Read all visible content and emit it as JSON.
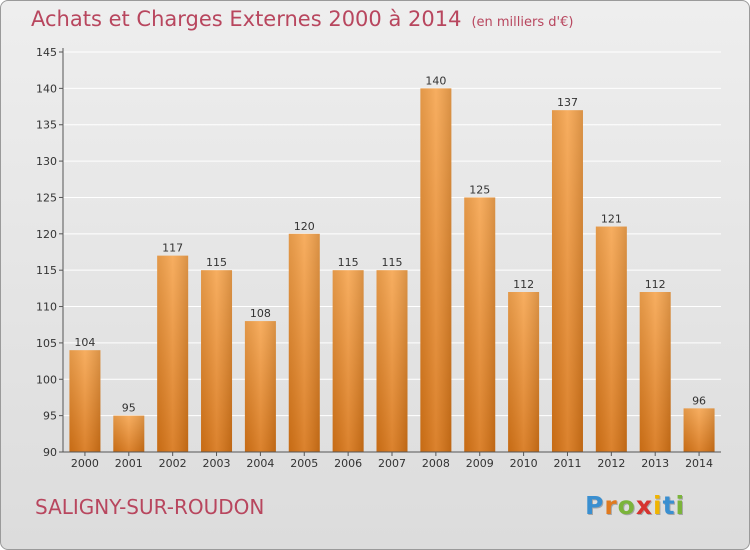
{
  "header": {
    "title": "Achats et Charges Externes 2000 à 2014",
    "unit": "(en milliers d'€)"
  },
  "footer": {
    "commune": "SALIGNY-SUR-ROUDON",
    "logo_letters": [
      "P",
      "r",
      "o",
      "x",
      "i",
      "t",
      "i"
    ],
    "logo_colors": [
      "#3a8fd0",
      "#e07a1f",
      "#7bb43a",
      "#d6332f",
      "#f0b400",
      "#3a8fd0",
      "#7bb43a"
    ]
  },
  "colors": {
    "title": "#b8465e",
    "bar_top": "#f6a54f",
    "bar_bottom": "#d77416",
    "grid": "#ffffff",
    "axis": "#555555"
  },
  "chart_data": {
    "type": "bar",
    "categories": [
      "2000",
      "2001",
      "2002",
      "2003",
      "2004",
      "2005",
      "2006",
      "2007",
      "2008",
      "2009",
      "2010",
      "2011",
      "2012",
      "2013",
      "2014"
    ],
    "values": [
      104,
      95,
      117,
      115,
      108,
      120,
      115,
      115,
      140,
      125,
      112,
      137,
      121,
      112,
      96
    ],
    "data_labels": [
      "104",
      "95",
      "117",
      "115",
      "108",
      "120",
      "115",
      "115",
      "140",
      "125",
      "112",
      "137",
      "121",
      "112",
      "96"
    ],
    "y_ticks": [
      90,
      95,
      100,
      105,
      110,
      115,
      120,
      125,
      130,
      135,
      140,
      145
    ],
    "ylim": [
      90,
      145
    ],
    "grid": true,
    "legend": "none"
  }
}
